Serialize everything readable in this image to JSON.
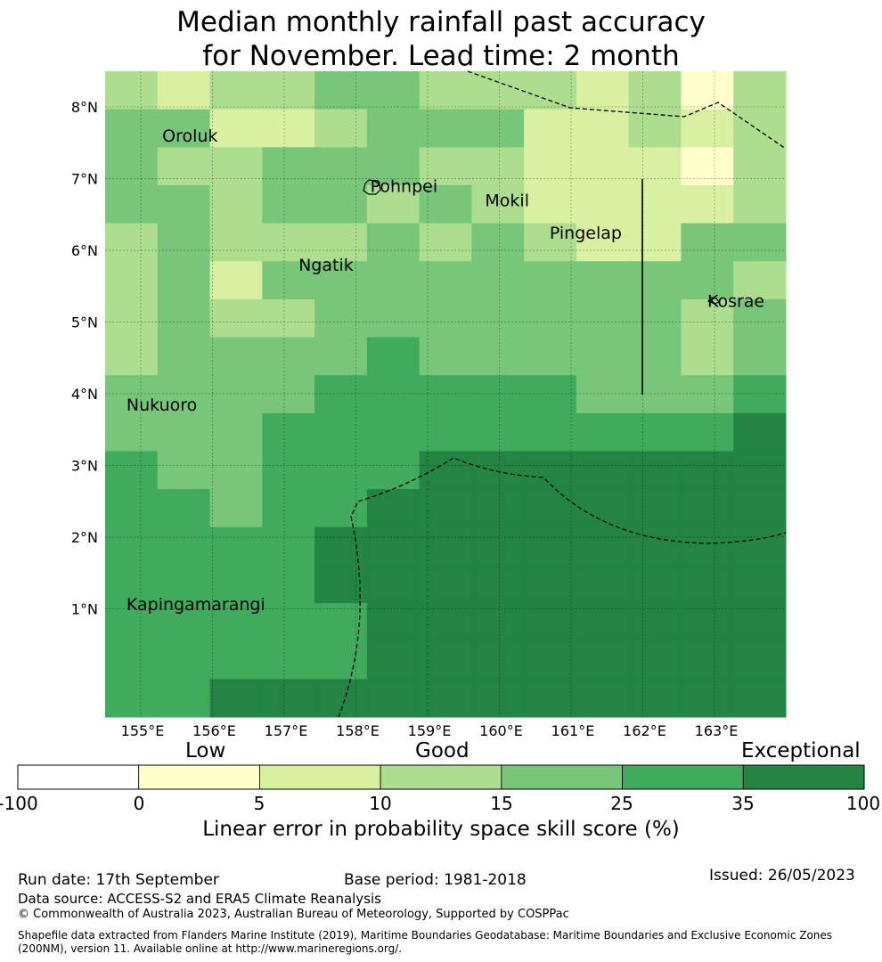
{
  "title_line1": "Median monthly rainfall past accuracy",
  "title_line2": "for November. Lead time: 2 month",
  "map": {
    "lon_labels": [
      "155°E",
      "156°E",
      "157°E",
      "158°E",
      "159°E",
      "160°E",
      "161°E",
      "162°E",
      "163°E"
    ],
    "lat_labels": [
      "8°N",
      "7°N",
      "6°N",
      "5°N",
      "4°N",
      "3°N",
      "2°N",
      "1°N"
    ],
    "places": [
      {
        "name": "Oroluk",
        "lon": 155.3,
        "lat": 7.6
      },
      {
        "name": "Pohnpei",
        "lon": 158.2,
        "lat": 6.9
      },
      {
        "name": "Mokil",
        "lon": 159.8,
        "lat": 6.7
      },
      {
        "name": "Pingelap",
        "lon": 160.7,
        "lat": 6.25
      },
      {
        "name": "Ngatik",
        "lon": 157.2,
        "lat": 5.8
      },
      {
        "name": "Kosrae",
        "lon": 162.9,
        "lat": 5.3
      },
      {
        "name": "Nukuoro",
        "lon": 154.8,
        "lat": 3.85
      },
      {
        "name": "Kapingamarangi",
        "lon": 154.8,
        "lat": 1.07
      }
    ],
    "grid_rows": [
      [
        3,
        2,
        3,
        3,
        4,
        4,
        3,
        3,
        3,
        2,
        3,
        1,
        3
      ],
      [
        4,
        4,
        2,
        2,
        3,
        4,
        4,
        4,
        2,
        2,
        3,
        2,
        3
      ],
      [
        4,
        3,
        3,
        4,
        4,
        4,
        3,
        3,
        2,
        2,
        2,
        1,
        3
      ],
      [
        4,
        4,
        3,
        4,
        4,
        3,
        4,
        3,
        2,
        2,
        2,
        2,
        3
      ],
      [
        3,
        4,
        3,
        3,
        3,
        4,
        3,
        4,
        3,
        2,
        2,
        4,
        4
      ],
      [
        3,
        4,
        2,
        4,
        4,
        4,
        4,
        4,
        4,
        4,
        4,
        4,
        3
      ],
      [
        3,
        4,
        3,
        3,
        4,
        4,
        4,
        4,
        4,
        4,
        4,
        3,
        4
      ],
      [
        3,
        4,
        4,
        4,
        4,
        5,
        4,
        4,
        4,
        4,
        4,
        3,
        4
      ],
      [
        4,
        4,
        4,
        4,
        5,
        5,
        5,
        5,
        5,
        4,
        4,
        4,
        5
      ],
      [
        4,
        4,
        4,
        5,
        5,
        5,
        5,
        5,
        5,
        5,
        5,
        5,
        6
      ],
      [
        5,
        4,
        4,
        5,
        5,
        5,
        6,
        6,
        6,
        6,
        6,
        6,
        6
      ],
      [
        5,
        5,
        4,
        5,
        5,
        6,
        6,
        6,
        6,
        6,
        6,
        6,
        6
      ],
      [
        5,
        5,
        5,
        5,
        6,
        6,
        6,
        6,
        6,
        6,
        6,
        6,
        6
      ],
      [
        5,
        5,
        5,
        5,
        6,
        6,
        6,
        6,
        6,
        6,
        6,
        6,
        6
      ],
      [
        5,
        5,
        5,
        5,
        5,
        6,
        6,
        6,
        6,
        6,
        6,
        6,
        6
      ],
      [
        5,
        5,
        5,
        5,
        5,
        6,
        6,
        6,
        6,
        6,
        6,
        6,
        6
      ],
      [
        5,
        5,
        6,
        6,
        6,
        6,
        6,
        6,
        6,
        6,
        6,
        6,
        6
      ]
    ]
  },
  "colorbar": {
    "colors": [
      "#ffffff",
      "#ffffcc",
      "#d9f0a3",
      "#addd8e",
      "#78c679",
      "#41ab5d",
      "#238443"
    ],
    "ticks": [
      "-100",
      "0",
      "5",
      "10",
      "15",
      "25",
      "35",
      "100"
    ],
    "categories": [
      "Low",
      "Good",
      "Exceptional"
    ],
    "label": "Linear error in probability space skill score (%)"
  },
  "footer": {
    "run_date": "Run date: 17th September",
    "base_period": "Base period: 1981-2018",
    "issued": "Issued: 26/05/2023",
    "data_source": "Data source: ACCESS-S2 and ERA5 Climate Reanalysis",
    "copyright": "© Commonwealth of Australia 2023, Australian Bureau of Meteorology, Supported by COSPPac",
    "shapefile_line1": "Shapefile data extracted from Flanders Marine Institute (2019), Maritime Boundaries Geodatabase: Maritime Boundaries and Exclusive Economic Zones",
    "shapefile_line2": "(200NM), version 11. Available online at http://www.marineregions.org/."
  }
}
